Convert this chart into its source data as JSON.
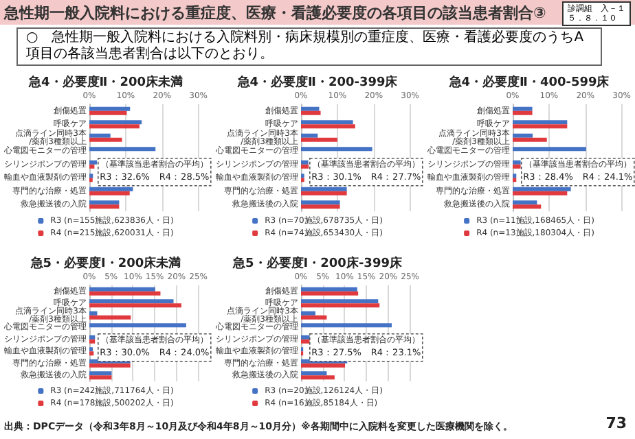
{
  "chart_data": [
    {
      "type": "other",
      "title": "急性期一般入院料における重症度、医療・看護必要度の各項目の該当患者割合③",
      "annotations": [
        "診調組　入－１",
        "５．８．１０",
        "○　急性期一般入院料における入院料別・病床規模別の重症度、医療・看護必要度のうちA項目の各該当患者割合は以下のとおり。",
        "出典：DPCデータ（令和3年8月～10月及び令和4年8月～10月分）※各期間中に入院料を変更した医療機関を除く。",
        "73"
      ]
    },
    {
      "type": "bar",
      "orientation": "horizontal",
      "title": "急4・必要度Ⅱ・200床未満",
      "categories": [
        "創傷処置",
        "呼吸ケア",
        "点滴ライン同時3本/薬剤3種類以上",
        "心電図モニターの管理",
        "シリンジポンプの管理",
        "輸血や血液製剤の管理",
        "専門的な治療・処置",
        "救急搬送後の入院"
      ],
      "series": [
        {
          "name": "R3 (n=155施設,623836人・日)",
          "color": "#4472c4",
          "values": [
            11.2,
            14.4,
            5.8,
            18.2,
            2.1,
            1.0,
            12.0,
            8.2
          ]
        },
        {
          "name": "R4 (n=215施設,620031人・日)",
          "color": "#e0393e",
          "values": [
            10.3,
            13.8,
            9.0,
            null,
            1.4,
            0.9,
            11.1,
            8.2
          ]
        }
      ],
      "xlim": [
        0,
        30
      ],
      "xticks": [
        {
          "value": 0,
          "label": "0%"
        },
        {
          "value": 10,
          "label": "10%"
        },
        {
          "value": 20,
          "label": "20%"
        },
        {
          "value": 30,
          "label": "30%"
        }
      ],
      "grid": "x",
      "legend": "bottom",
      "annotations": [
        "（基準該当患者割合の平均）",
        "R3：32.6%　R4：28.5%"
      ]
    },
    {
      "type": "bar",
      "orientation": "horizontal",
      "title": "急4・必要度Ⅱ・200-399床",
      "categories": [
        "創傷処置",
        "呼吸ケア",
        "点滴ライン同時3本/薬剤3種類以上",
        "心電図モニターの管理",
        "シリンジポンプの管理",
        "輸血や血液製剤の管理",
        "専門的な治療・処置",
        "救急搬送後の入院"
      ],
      "series": [
        {
          "name": "R3 (n=70施設,678735人・日)",
          "color": "#4472c4",
          "values": [
            5.0,
            14.3,
            4.6,
            19.6,
            2.0,
            0.9,
            12.6,
            10.7
          ]
        },
        {
          "name": "R4 (n=74施設,653430人・日)",
          "color": "#e0393e",
          "values": [
            5.4,
            14.9,
            10.0,
            null,
            2.1,
            0.9,
            12.6,
            10.7
          ]
        }
      ],
      "xlim": [
        0,
        30
      ],
      "xticks": [
        {
          "value": 0,
          "label": "0%"
        },
        {
          "value": 10,
          "label": "10%"
        },
        {
          "value": 20,
          "label": "20%"
        },
        {
          "value": 30,
          "label": "30%"
        }
      ],
      "grid": "x",
      "legend": "bottom",
      "annotations": [
        "（基準該当患者割合の平均）",
        "R3：30.1%　R4：27.7%"
      ]
    },
    {
      "type": "bar",
      "orientation": "horizontal",
      "title": "急4・必要度Ⅱ・400-599床",
      "categories": [
        "創傷処置",
        "呼吸ケア",
        "点滴ライン同時3本/薬剤3種類以上",
        "心電図モニターの管理",
        "シリンジポンプの管理",
        "輸血や血液製剤の管理",
        "専門的な治療・処置",
        "救急搬送後の入院"
      ],
      "series": [
        {
          "name": "R3 (n=11施設,168465人・日)",
          "color": "#4472c4",
          "values": [
            5.4,
            15.0,
            5.5,
            20.2,
            2.2,
            1.0,
            16.0,
            6.7
          ]
        },
        {
          "name": "R4 (n=13施設,180304人・日)",
          "color": "#e0393e",
          "values": [
            5.4,
            15.0,
            9.4,
            null,
            2.2,
            1.0,
            15.0,
            7.8
          ]
        }
      ],
      "xlim": [
        0,
        30
      ],
      "xticks": [
        {
          "value": 0,
          "label": "0%"
        },
        {
          "value": 10,
          "label": "10%"
        },
        {
          "value": 20,
          "label": "20%"
        },
        {
          "value": 30,
          "label": "30%"
        }
      ],
      "grid": "x",
      "legend": "bottom",
      "annotations": [
        "（基準該当患者割合の平均）",
        "R3：28.4%　R4：24.1%"
      ]
    },
    {
      "type": "bar",
      "orientation": "horizontal",
      "title": "急5・必要度Ⅰ・200床未満",
      "categories": [
        "創傷処置",
        "呼吸ケア",
        "点滴ライン同時3本/薬剤3種類以上",
        "心電図モニターの管理",
        "シリンジポンプの管理",
        "輸血や血液製剤の管理",
        "専門的な治療・処置",
        "救急搬送後の入院"
      ],
      "series": [
        {
          "name": "R3 (n=242施設,711764人・日)",
          "color": "#4472c4",
          "values": [
            15.1,
            19.3,
            1.8,
            22.2,
            1.3,
            0.8,
            9.4,
            5.1
          ]
        },
        {
          "name": "R4 (n=178施設,500202人・日)",
          "color": "#e0393e",
          "values": [
            16.3,
            21.1,
            9.5,
            null,
            1.3,
            1.0,
            9.4,
            5.1
          ]
        }
      ],
      "xlim": [
        0,
        25
      ],
      "xticks": [
        {
          "value": 0,
          "label": "0%"
        },
        {
          "value": 5,
          "label": "5%"
        },
        {
          "value": 10,
          "label": "10%"
        },
        {
          "value": 15,
          "label": "15%"
        },
        {
          "value": 20,
          "label": "20%"
        },
        {
          "value": 25,
          "label": "25%"
        }
      ],
      "grid": "x",
      "legend": "bottom",
      "annotations": [
        "（基準該当患者割合の平均）",
        "R3：30.0%　R4：24.0%"
      ]
    },
    {
      "type": "bar",
      "orientation": "horizontal",
      "title": "急5・必要度Ⅰ・200床-399床",
      "categories": [
        "創傷処置",
        "呼吸ケア",
        "点滴ライン同時3本/薬剤3種類以上",
        "心電図モニターの管理",
        "シリンジポンプの管理",
        "輸血や血液製剤の管理",
        "専門的な治療・処置",
        "救急搬送後の入院"
      ],
      "series": [
        {
          "name": "R3 (n=20施設,126124人・日)",
          "color": "#4472c4",
          "values": [
            12.9,
            17.7,
            3.3,
            20.8,
            2.0,
            0.5,
            10.6,
            5.9
          ]
        },
        {
          "name": "R4 (n=16施設,85184人・日)",
          "color": "#e0393e",
          "values": [
            13.1,
            18.0,
            5.9,
            null,
            2.0,
            0.5,
            10.1,
            7.7
          ]
        }
      ],
      "xlim": [
        0,
        25
      ],
      "xticks": [
        {
          "value": 0,
          "label": "0%"
        },
        {
          "value": 5,
          "label": "5%"
        },
        {
          "value": 10,
          "label": "10%"
        },
        {
          "value": 15,
          "label": "15%"
        },
        {
          "value": 20,
          "label": "20%"
        },
        {
          "value": 25,
          "label": "25%"
        }
      ],
      "grid": "x",
      "legend": "bottom",
      "annotations": [
        "（基準該当患者割合の平均）",
        "R3：27.5%　R4：23.1%"
      ]
    }
  ]
}
